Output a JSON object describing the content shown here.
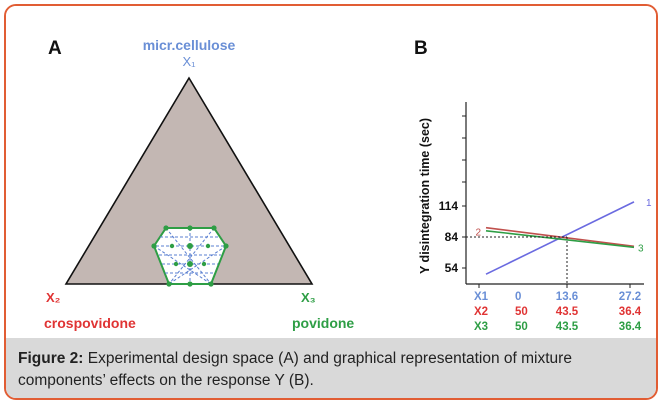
{
  "panel_a": {
    "label": "A",
    "top_vertex_name": "micr.cellulose",
    "top_vertex_var": "X₁",
    "left_vertex_var": "X₂",
    "left_vertex_name": "crospovidone",
    "right_vertex_var": "X₃",
    "right_vertex_name": "povidone"
  },
  "panel_b": {
    "label": "B",
    "ylabel": "Y disintegration time (sec)",
    "y_ticks": [
      "114",
      "84",
      "54"
    ],
    "series_marks": [
      "1",
      "2",
      "3"
    ],
    "table": [
      {
        "name": "X1",
        "color": "#6a8fd6",
        "values": [
          "0",
          "13.6",
          "27.2"
        ]
      },
      {
        "name": "X2",
        "color": "#e03434",
        "values": [
          "50",
          "43.5",
          "36.4"
        ]
      },
      {
        "name": "X3",
        "color": "#2e9e45",
        "values": [
          "50",
          "43.5",
          "36.4"
        ]
      }
    ]
  },
  "chart_data": {
    "type": "line",
    "ylabel": "Y disintegration time (sec)",
    "y_ticks": [
      54,
      84,
      114
    ],
    "series": [
      {
        "name": "1",
        "color": "#6a6ae0",
        "start": 48,
        "end": 118
      },
      {
        "name": "2",
        "color": "#c0504d",
        "start": 93,
        "end": 75
      },
      {
        "name": "3",
        "color": "#2e9e45",
        "start": 90,
        "end": 74
      }
    ],
    "crossing": {
      "x_index": 1,
      "y": 84
    }
  },
  "caption": {
    "lead": "Figure 2:",
    "text": " Experimental design space (A) and graphical representation of mixture components’ effects on the response Y (B)."
  }
}
